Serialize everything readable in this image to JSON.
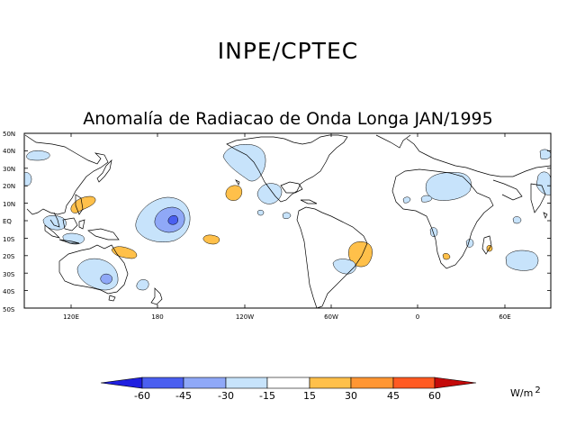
{
  "header": {
    "agency": "INPE/CPTEC",
    "title": "Anomalía de Radiacao de Onda Longa JAN/1995"
  },
  "map": {
    "lat_labels": [
      "50N",
      "40N",
      "30N",
      "20N",
      "10N",
      "EQ",
      "10S",
      "20S",
      "30S",
      "40S",
      "50S"
    ],
    "lon_labels": [
      "120E",
      "180",
      "120W",
      "60W",
      "0",
      "60E"
    ],
    "anomaly_regions": [
      {
        "location": "central-pacific-equator",
        "sign": "negative",
        "level": "-45"
      },
      {
        "location": "north-pacific-hawaii",
        "sign": "negative",
        "level": "-15"
      },
      {
        "location": "brazil-northeast",
        "sign": "positive",
        "level": "30"
      },
      {
        "location": "philippine-sea",
        "sign": "positive",
        "level": "15"
      },
      {
        "location": "australia-east",
        "sign": "negative",
        "level": "-30"
      },
      {
        "location": "north-atlantic-sahara",
        "sign": "negative",
        "level": "-15"
      },
      {
        "location": "south-indian-ocean",
        "sign": "negative",
        "level": "-15"
      }
    ]
  },
  "colorbar": {
    "labels": [
      "-60",
      "-45",
      "-30",
      "-15",
      "15",
      "30",
      "45",
      "60"
    ],
    "colors": [
      "#1f1fe0",
      "#4a5ff0",
      "#8fa8f7",
      "#c7e3fb",
      "#ffffff",
      "#ffc04a",
      "#ff9633",
      "#ff5a22",
      "#c40a0a"
    ],
    "unit": "W/m",
    "unit_exp": "2"
  }
}
